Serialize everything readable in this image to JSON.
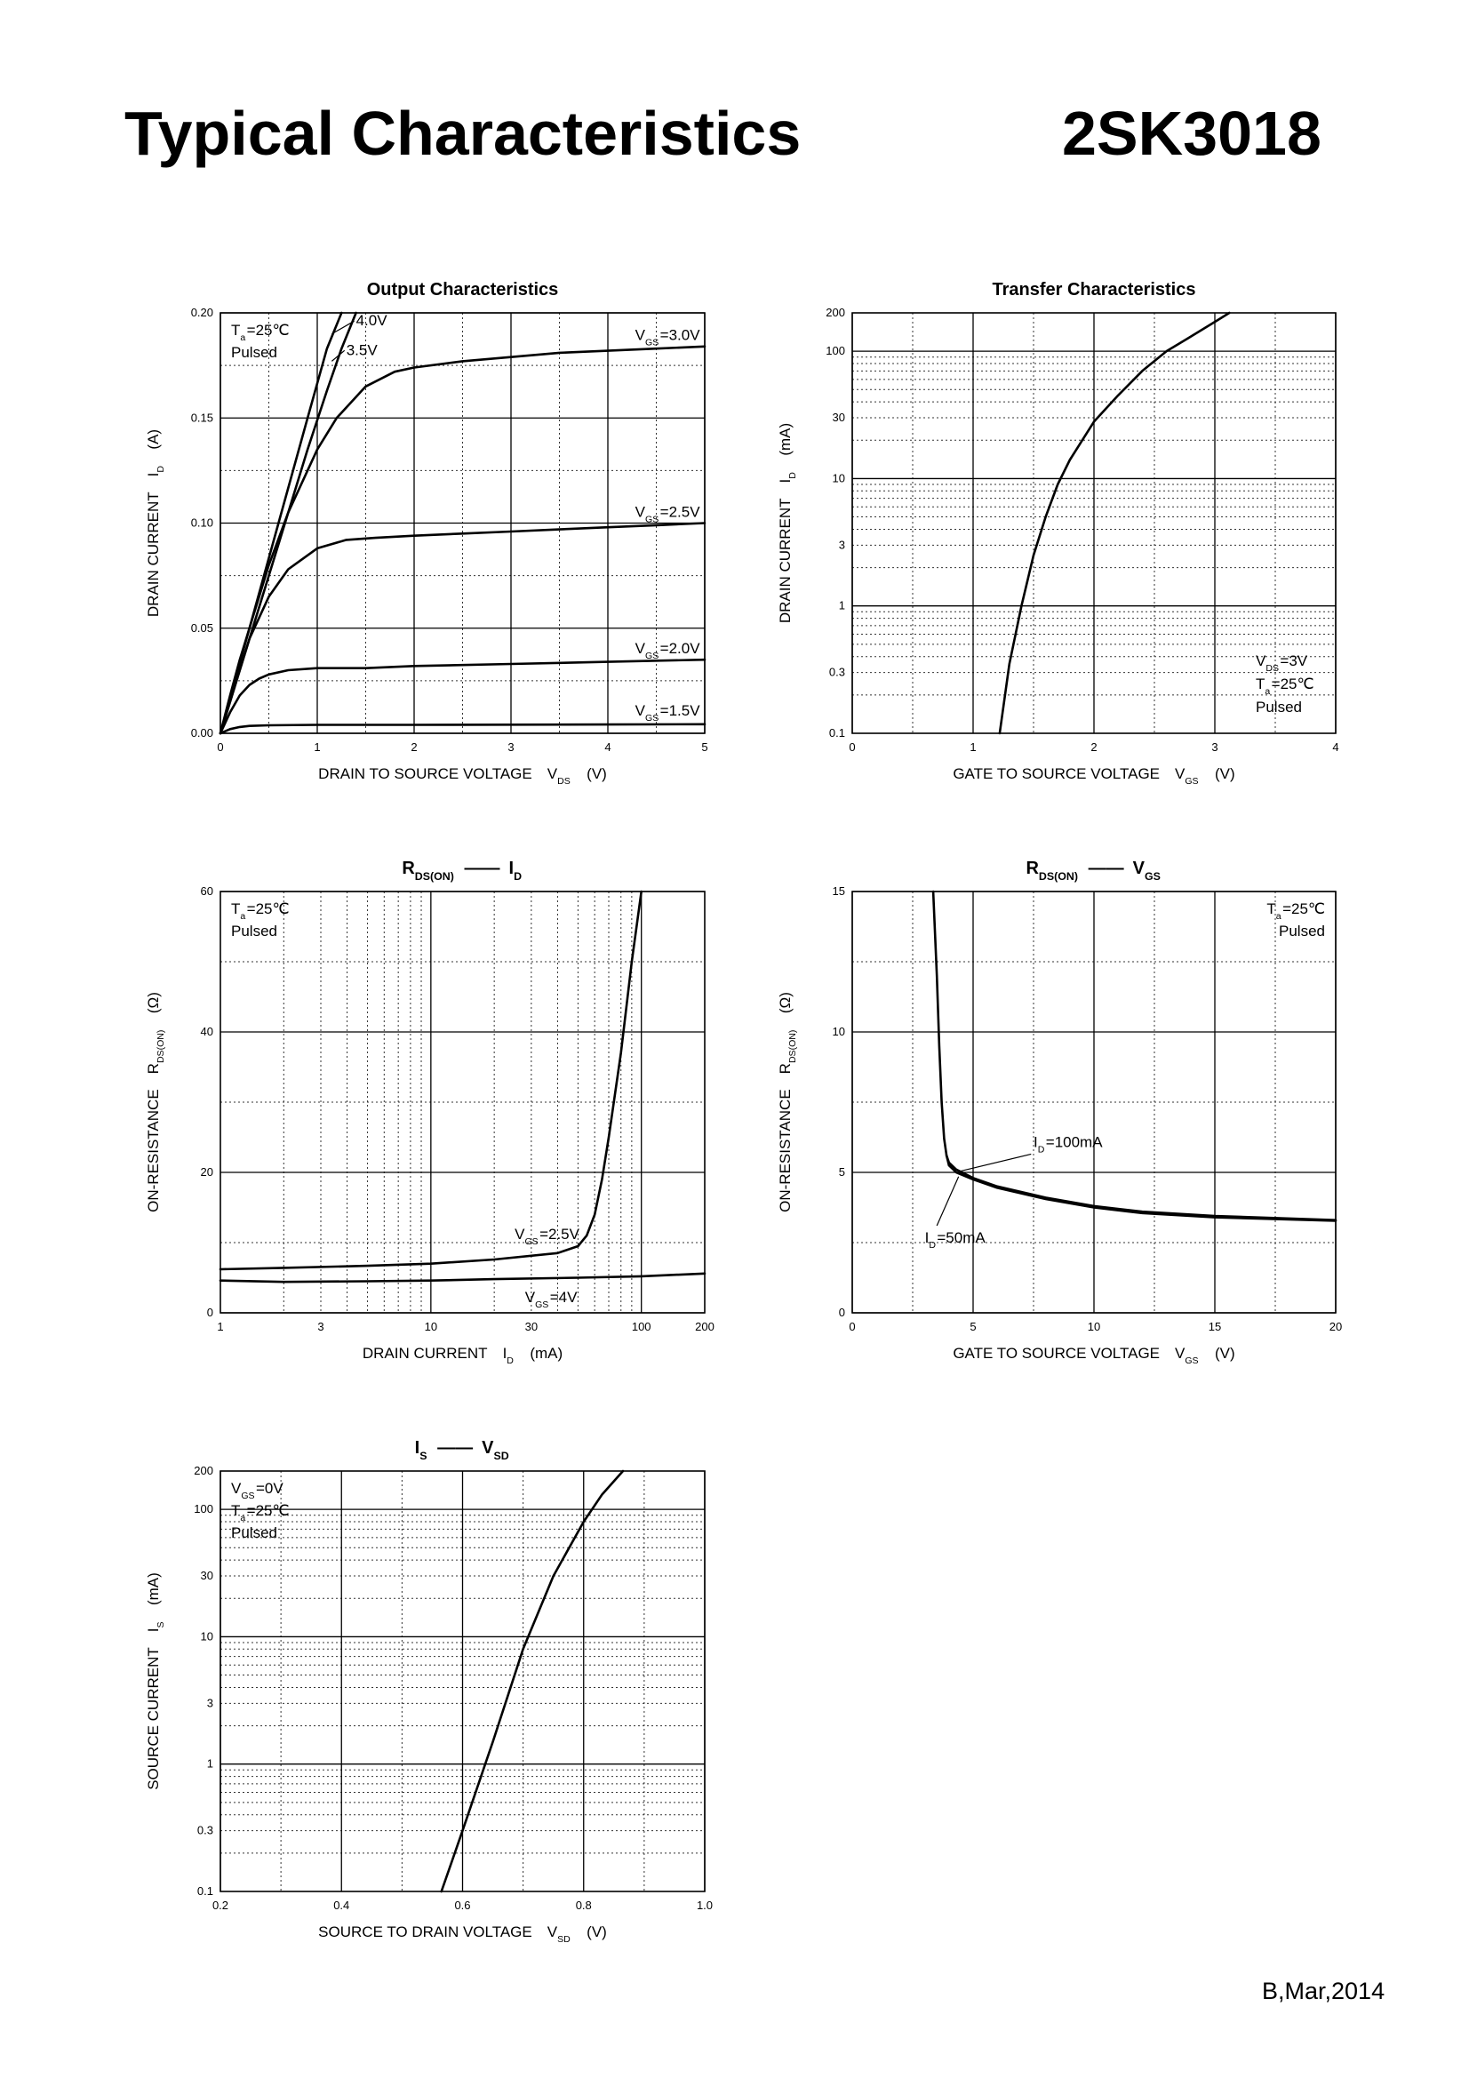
{
  "page": {
    "title": "Typical Characteristics",
    "part_number": "2SK3018",
    "footer": "B,Mar,2014"
  },
  "chart_data": [
    {
      "type": "line",
      "title": "Output Characteristics",
      "xlabel": "DRAIN TO SOURCE VOLTAGE",
      "xlabel_sym": "V",
      "xlabel_sub": "DS",
      "xlabel_unit": "(V)",
      "ylabel": "DRAIN CURRENT",
      "ylabel_sym": "I",
      "ylabel_sub": "D",
      "ylabel_unit": "(A)",
      "xscale": "linear",
      "yscale": "linear",
      "xlim": [
        0,
        5
      ],
      "ylim": [
        0,
        0.2
      ],
      "xticks": [
        0,
        1,
        2,
        3,
        4,
        5
      ],
      "xtick_labels": [
        "0",
        "1",
        "2",
        "3",
        "4",
        "5"
      ],
      "yticks": [
        0,
        0.05,
        0.1,
        0.15,
        0.2
      ],
      "ytick_labels": [
        "0.00",
        "0.05",
        "0.10",
        "0.15",
        "0.20"
      ],
      "xminor": [
        0.5,
        1.5,
        2.5,
        3.5,
        4.5
      ],
      "yminor": [
        0.025,
        0.075,
        0.125,
        0.175
      ],
      "notes": [
        {
          "parts": [
            [
              "T",
              "a",
              "=25℃"
            ]
          ],
          "anchor": "tl",
          "line": 0
        },
        {
          "parts": [
            [
              "Pulsed",
              "",
              ""
            ]
          ],
          "anchor": "tl",
          "line": 1
        }
      ],
      "series": [
        {
          "label": [
            "V",
            "GS",
            "=3.0V"
          ],
          "x": [
            0,
            0.1,
            0.2,
            0.3,
            0.5,
            0.7,
            1.0,
            1.2,
            1.5,
            1.8,
            2.0,
            2.5,
            3.0,
            3.5,
            4.0,
            4.5,
            5.0
          ],
          "y": [
            0,
            0.018,
            0.035,
            0.05,
            0.08,
            0.105,
            0.135,
            0.15,
            0.165,
            0.172,
            0.174,
            0.177,
            0.179,
            0.181,
            0.182,
            0.183,
            0.184
          ],
          "label_at": [
            4.95,
            0.187
          ]
        },
        {
          "label": [
            "V",
            "GS",
            "=2.5V"
          ],
          "x": [
            0,
            0.1,
            0.2,
            0.3,
            0.5,
            0.7,
            1.0,
            1.3,
            1.6,
            2.0,
            2.5,
            3.0,
            3.5,
            4.0,
            4.5,
            5.0
          ],
          "y": [
            0,
            0.015,
            0.03,
            0.045,
            0.065,
            0.078,
            0.088,
            0.092,
            0.093,
            0.094,
            0.095,
            0.096,
            0.097,
            0.098,
            0.099,
            0.1
          ],
          "label_at": [
            4.95,
            0.103
          ]
        },
        {
          "label": [
            "V",
            "GS",
            "=2.0V"
          ],
          "x": [
            0,
            0.1,
            0.2,
            0.3,
            0.4,
            0.5,
            0.7,
            1.0,
            1.5,
            2.0,
            3.0,
            4.0,
            5.0
          ],
          "y": [
            0,
            0.01,
            0.018,
            0.023,
            0.026,
            0.028,
            0.03,
            0.031,
            0.031,
            0.032,
            0.033,
            0.034,
            0.035
          ],
          "label_at": [
            4.95,
            0.038
          ]
        },
        {
          "label": [
            "V",
            "GS",
            "=1.5V"
          ],
          "x": [
            0,
            0.1,
            0.2,
            0.3,
            0.5,
            1.0,
            2.0,
            3.0,
            4.0,
            5.0
          ],
          "y": [
            0,
            0.002,
            0.003,
            0.0035,
            0.0038,
            0.004,
            0.004,
            0.0041,
            0.0042,
            0.0043
          ],
          "label_at": [
            4.95,
            0.0085
          ]
        },
        {
          "label": [
            "",
            "",
            "4.0V"
          ],
          "x": [
            0,
            0.3,
            0.6,
            0.9,
            1.1,
            1.25
          ],
          "y": [
            0,
            0.05,
            0.1,
            0.15,
            0.183,
            0.2
          ],
          "label_at": [
            1.4,
            0.194
          ],
          "leader": [
            1.15,
            0.19
          ]
        },
        {
          "label": [
            "",
            "",
            "3.5V"
          ],
          "x": [
            0,
            0.3,
            0.6,
            0.9,
            1.1,
            1.25,
            1.4
          ],
          "y": [
            0,
            0.045,
            0.09,
            0.135,
            0.163,
            0.183,
            0.2
          ],
          "label_at": [
            1.3,
            0.18
          ],
          "leader": [
            1.15,
            0.177
          ]
        }
      ]
    },
    {
      "type": "line",
      "title": "Transfer Characteristics",
      "xlabel": "GATE TO SOURCE VOLTAGE",
      "xlabel_sym": "V",
      "xlabel_sub": "GS",
      "xlabel_unit": "(V)",
      "ylabel": "DRAIN CURRENT",
      "ylabel_sym": "I",
      "ylabel_sub": "D",
      "ylabel_unit": "(mA)",
      "xscale": "linear",
      "yscale": "log",
      "xlim": [
        0,
        4
      ],
      "ylim": [
        0.1,
        200
      ],
      "xticks": [
        0,
        1,
        2,
        3,
        4
      ],
      "xtick_labels": [
        "0",
        "1",
        "2",
        "3",
        "4"
      ],
      "yticks": [
        0.1,
        0.3,
        1,
        3,
        10,
        30,
        100,
        200
      ],
      "ytick_labels": [
        "0.1",
        "0.3",
        "1",
        "3",
        "10",
        "30",
        "100",
        "200"
      ],
      "ymajor": [
        1,
        10,
        100
      ],
      "xminor": [
        0.5,
        1.5,
        2.5,
        3.5
      ],
      "notes": [
        {
          "parts": [
            [
              "V",
              "DS",
              "=3V"
            ]
          ],
          "anchor": "br",
          "line": 2
        },
        {
          "parts": [
            [
              "T",
              "a",
              "=25℃"
            ]
          ],
          "anchor": "br",
          "line": 1
        },
        {
          "parts": [
            [
              "Pulsed",
              "",
              ""
            ]
          ],
          "anchor": "br",
          "line": 0
        }
      ],
      "series": [
        {
          "label": null,
          "x": [
            1.22,
            1.3,
            1.4,
            1.5,
            1.6,
            1.7,
            1.8,
            2.0,
            2.2,
            2.4,
            2.6,
            2.8,
            3.0,
            3.12
          ],
          "y": [
            0.1,
            0.35,
            1.0,
            2.5,
            5.0,
            9.0,
            14.0,
            28.0,
            45.0,
            70.0,
            100.0,
            130.0,
            170.0,
            200.0
          ]
        }
      ]
    },
    {
      "type": "line",
      "title_parts": [
        [
          "R",
          "DS(ON)",
          ""
        ],
        [
          "",
          "",
          "——"
        ],
        [
          "I",
          "D",
          ""
        ]
      ],
      "xlabel": "DRAIN CURRENT",
      "xlabel_sym": "I",
      "xlabel_sub": "D",
      "xlabel_unit": "(mA)",
      "ylabel": "ON-RESISTANCE",
      "ylabel_sym": "R",
      "ylabel_sub": "DS(ON)",
      "ylabel_unit": "(Ω)",
      "xscale": "log",
      "yscale": "linear",
      "xlim": [
        1,
        200
      ],
      "ylim": [
        0,
        60
      ],
      "xticks": [
        1,
        3,
        10,
        30,
        100,
        200
      ],
      "xtick_labels": [
        "1",
        "3",
        "10",
        "30",
        "100",
        "200"
      ],
      "xmajor": [
        10,
        100
      ],
      "yticks": [
        0,
        20,
        40,
        60
      ],
      "ytick_labels": [
        "0",
        "20",
        "40",
        "60"
      ],
      "yminor": [
        10,
        30,
        50
      ],
      "notes": [
        {
          "parts": [
            [
              "T",
              "a",
              "=25℃"
            ]
          ],
          "anchor": "tl",
          "line": 0
        },
        {
          "parts": [
            [
              "Pulsed",
              "",
              ""
            ]
          ],
          "anchor": "tl",
          "line": 1
        }
      ],
      "series": [
        {
          "label": [
            "V",
            "GS",
            "=2.5V"
          ],
          "x": [
            1,
            2,
            5,
            10,
            20,
            40,
            50,
            55,
            60,
            65,
            70,
            80,
            90,
            100
          ],
          "y": [
            6.2,
            6.4,
            6.7,
            7.0,
            7.6,
            8.5,
            9.5,
            11.0,
            14.0,
            19.0,
            25.0,
            37.0,
            50.0,
            60.0
          ],
          "label_at": [
            25,
            10.5
          ]
        },
        {
          "label": [
            "V",
            "GS",
            "=4V"
          ],
          "x": [
            1,
            2,
            5,
            10,
            20,
            50,
            100,
            200
          ],
          "y": [
            4.6,
            4.4,
            4.5,
            4.6,
            4.8,
            5.0,
            5.2,
            5.6
          ],
          "label_at": [
            28,
            1.5
          ]
        }
      ]
    },
    {
      "type": "line",
      "title_parts": [
        [
          "R",
          "DS(ON)",
          ""
        ],
        [
          "",
          "",
          "——"
        ],
        [
          "V",
          "GS",
          ""
        ]
      ],
      "xlabel": "GATE TO SOURCE VOLTAGE",
      "xlabel_sym": "V",
      "xlabel_sub": "GS",
      "xlabel_unit": "(V)",
      "ylabel": "ON-RESISTANCE",
      "ylabel_sym": "R",
      "ylabel_sub": "DS(ON)",
      "ylabel_unit": "(Ω)",
      "xscale": "linear",
      "yscale": "linear",
      "xlim": [
        0,
        20
      ],
      "ylim": [
        0,
        15
      ],
      "xticks": [
        0,
        5,
        10,
        15,
        20
      ],
      "xtick_labels": [
        "0",
        "5",
        "10",
        "15",
        "20"
      ],
      "yticks": [
        0,
        5,
        10,
        15
      ],
      "ytick_labels": [
        "0",
        "5",
        "10",
        "15"
      ],
      "xminor": [
        2.5,
        7.5,
        12.5,
        17.5
      ],
      "yminor": [
        2.5,
        7.5,
        12.5
      ],
      "notes": [
        {
          "parts": [
            [
              "T",
              "a",
              "=25℃"
            ]
          ],
          "anchor": "tr",
          "line": 0
        },
        {
          "parts": [
            [
              "Pulsed",
              "",
              ""
            ]
          ],
          "anchor": "tr",
          "line": 1
        }
      ],
      "series": [
        {
          "label": [
            "I",
            "D",
            "=100mA"
          ],
          "x": [
            3.35,
            3.5,
            3.6,
            3.7,
            3.8,
            3.9,
            4.0,
            4.3,
            5.0,
            6.0,
            8.0,
            10.0,
            12.0,
            15.0,
            20.0
          ],
          "y": [
            15.0,
            12.0,
            9.5,
            7.5,
            6.2,
            5.6,
            5.35,
            5.1,
            4.8,
            4.5,
            4.1,
            3.8,
            3.6,
            3.45,
            3.3
          ],
          "label_at": [
            7.5,
            5.9
          ],
          "leader": [
            4.5,
            5.05
          ],
          "leader_from": [
            7.4,
            5.65
          ]
        },
        {
          "label": [
            "I",
            "D",
            "=50mA"
          ],
          "x": [
            3.9,
            4.0,
            4.3,
            5.0,
            6.0,
            8.0,
            10.0,
            12.0,
            15.0,
            20.0
          ],
          "y": [
            5.6,
            5.25,
            5.0,
            4.75,
            4.45,
            4.05,
            3.75,
            3.55,
            3.4,
            3.28
          ],
          "label_at": [
            3.0,
            2.5
          ],
          "leader": [
            4.4,
            4.85
          ],
          "leader_from": [
            3.5,
            3.1
          ]
        }
      ]
    },
    {
      "type": "line",
      "title_parts": [
        [
          "I",
          "S",
          ""
        ],
        [
          "",
          "",
          "——"
        ],
        [
          "V",
          "SD",
          ""
        ]
      ],
      "xlabel": "SOURCE TO DRAIN VOLTAGE",
      "xlabel_sym": "V",
      "xlabel_sub": "SD",
      "xlabel_unit": "(V)",
      "ylabel": "SOURCE CURRENT",
      "ylabel_sym": "I",
      "ylabel_sub": "S",
      "ylabel_unit": "(mA)",
      "xscale": "linear",
      "yscale": "log",
      "xlim": [
        0.2,
        1.0
      ],
      "ylim": [
        0.1,
        200
      ],
      "xticks": [
        0.2,
        0.4,
        0.6,
        0.8,
        1.0
      ],
      "xtick_labels": [
        "0.2",
        "0.4",
        "0.6",
        "0.8",
        "1.0"
      ],
      "yticks": [
        0.1,
        0.3,
        1,
        3,
        10,
        30,
        100,
        200
      ],
      "ytick_labels": [
        "0.1",
        "0.3",
        "1",
        "3",
        "10",
        "30",
        "100",
        "200"
      ],
      "ymajor": [
        1,
        10,
        100
      ],
      "xminor": [
        0.3,
        0.5,
        0.7,
        0.9
      ],
      "notes": [
        {
          "parts": [
            [
              "V",
              "GS",
              "=0V"
            ]
          ],
          "anchor": "tl",
          "line": 0
        },
        {
          "parts": [
            [
              "T",
              "a",
              "=25℃"
            ]
          ],
          "anchor": "tl",
          "line": 1
        },
        {
          "parts": [
            [
              "Pulsed",
              "",
              ""
            ]
          ],
          "anchor": "tl",
          "line": 2
        }
      ],
      "series": [
        {
          "label": null,
          "x": [
            0.565,
            0.6,
            0.65,
            0.7,
            0.75,
            0.8,
            0.83,
            0.865
          ],
          "y": [
            0.1,
            0.3,
            1.5,
            8.0,
            30.0,
            80.0,
            130.0,
            200.0
          ]
        }
      ]
    }
  ]
}
